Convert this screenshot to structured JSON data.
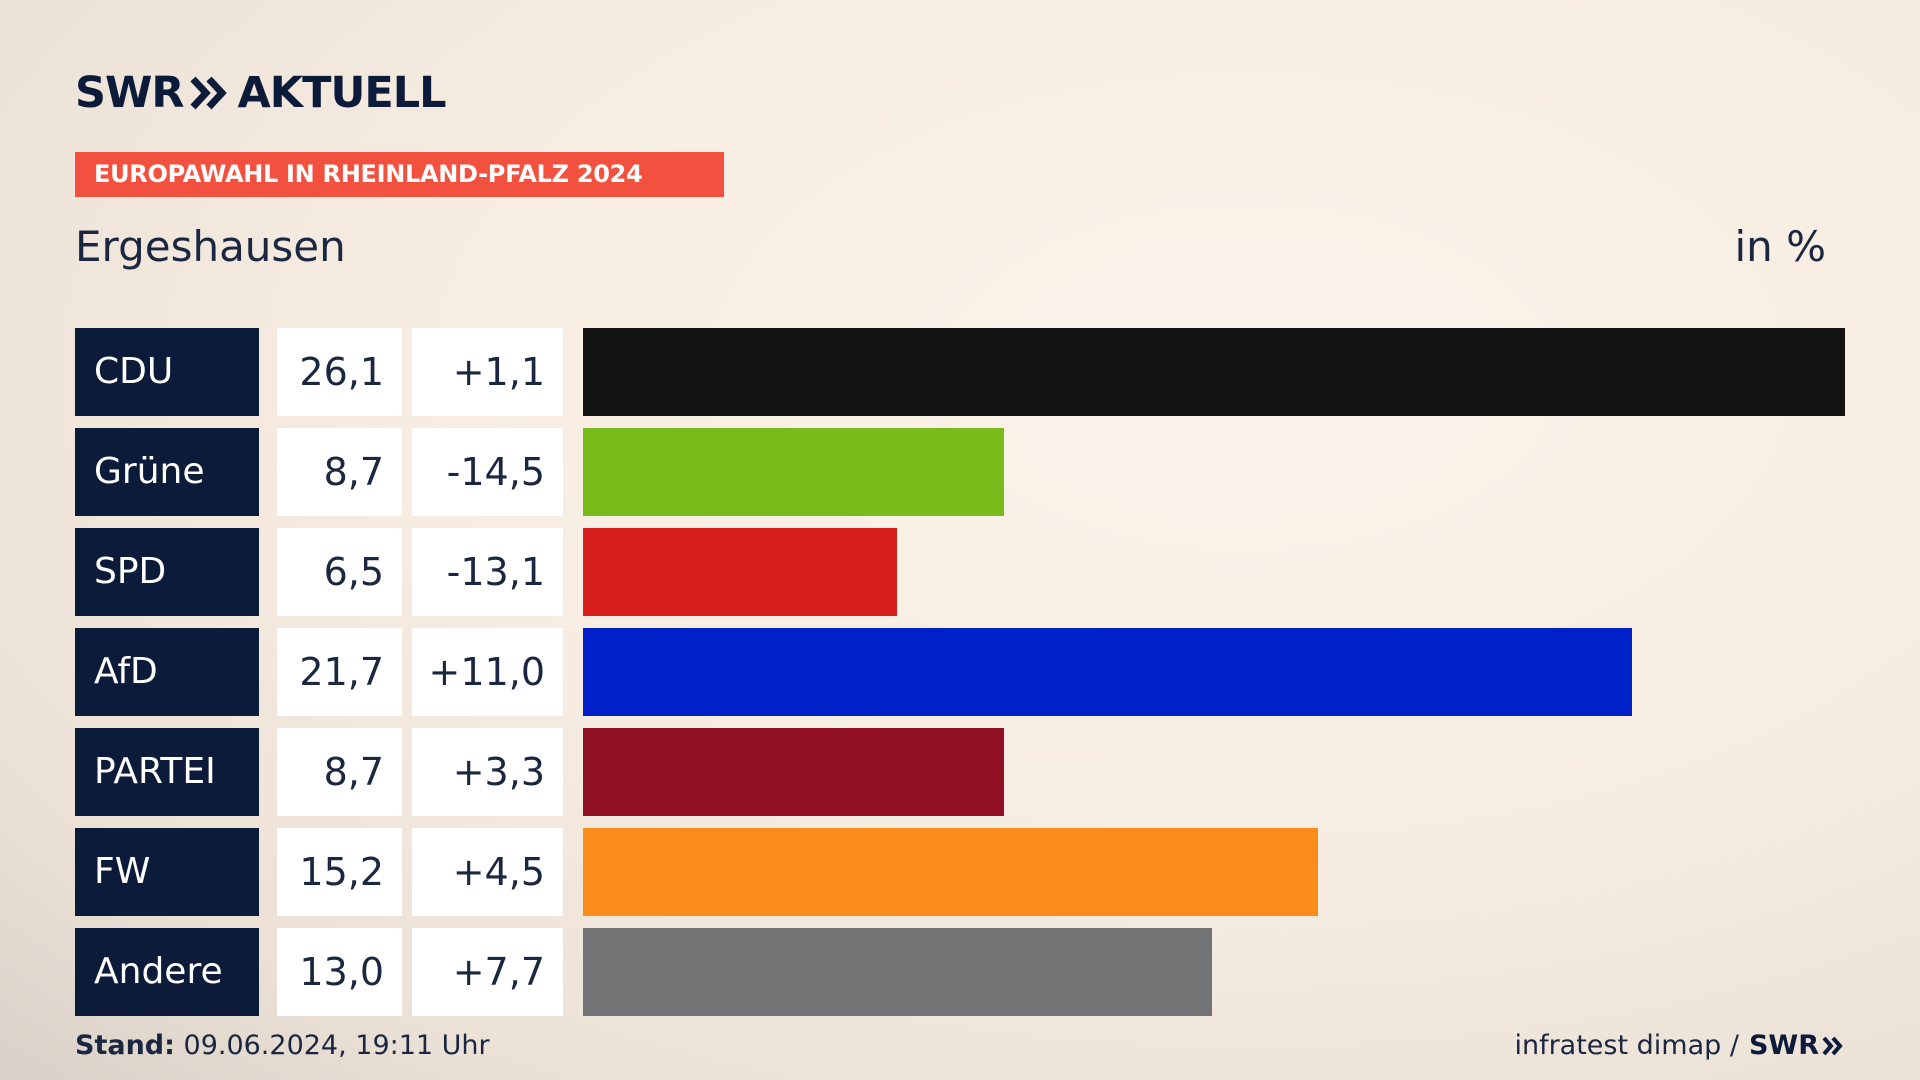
{
  "header": {
    "logo_swr": "SWR",
    "logo_aktuell": "AKTUELL",
    "banner": "EUROPAWAHL IN RHEINLAND-PFALZ 2024",
    "place": "Ergeshausen",
    "unit": "in %"
  },
  "footer": {
    "stand_label": "Stand:",
    "stand_value": "09.06.2024, 19:11 Uhr",
    "source": "infratest dimap /",
    "source_logo": "SWR"
  },
  "colors": {
    "navy": "#0d1b3a",
    "banner": "#f2513f"
  },
  "chart_data": {
    "type": "bar",
    "orientation": "horizontal",
    "categories": [
      "CDU",
      "Grüne",
      "SPD",
      "AfD",
      "PARTEI",
      "FW",
      "Andere"
    ],
    "values": [
      26.1,
      8.7,
      6.5,
      21.7,
      8.7,
      15.2,
      13.0
    ],
    "values_text": [
      "26,1",
      "8,7",
      "6,5",
      "21,7",
      "8,7",
      "15,2",
      "13,0"
    ],
    "changes_text": [
      "+1,1",
      "-14,5",
      "-13,1",
      "+11,0",
      "+3,3",
      "+4,5",
      "+7,7"
    ],
    "colors": [
      "#141414",
      "#78bc1b",
      "#d71f1d",
      "#0021c8",
      "#910f22",
      "#fa8c19",
      "#727375"
    ],
    "xlim": [
      0,
      26.1
    ]
  }
}
